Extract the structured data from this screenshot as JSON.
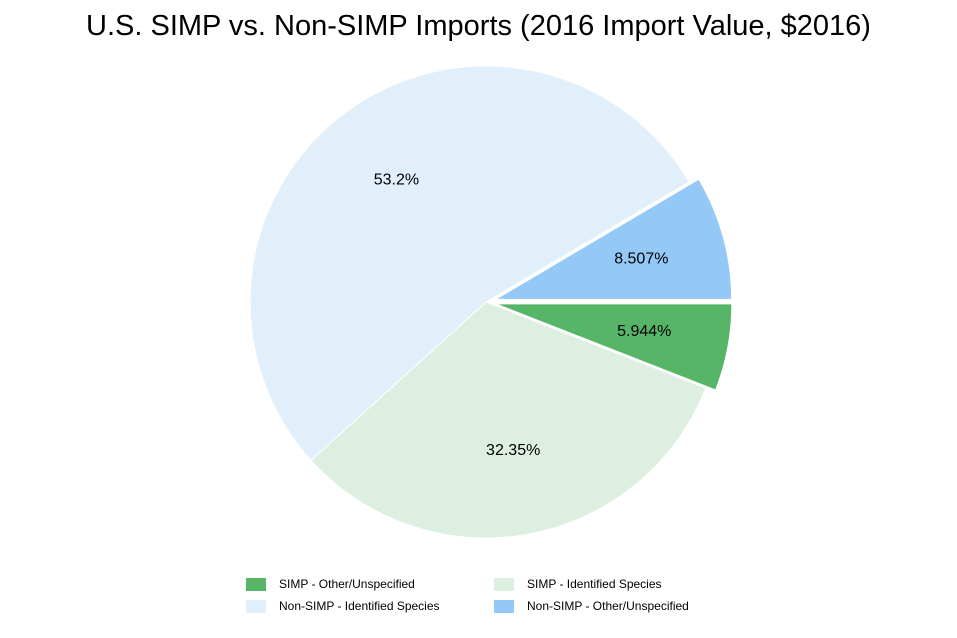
{
  "chart_data": {
    "type": "pie",
    "title": "U.S. SIMP vs. Non-SIMP Imports (2016 Import Value, $2016)",
    "slices": [
      {
        "name": "SIMP - Other/Unspecified",
        "value": 5.944,
        "label": "5.944%",
        "color": "#57b568",
        "exploded": true
      },
      {
        "name": "SIMP - Identified Species",
        "value": 32.35,
        "label": "32.35%",
        "color": "#dcefe0",
        "exploded": false
      },
      {
        "name": "Non-SIMP - Identified Species",
        "value": 53.2,
        "label": "53.2%",
        "color": "#e1effb",
        "exploded": false
      },
      {
        "name": "Non-SIMP - Other/Unspecified",
        "value": 8.507,
        "label": "8.507%",
        "color": "#94c8f6",
        "exploded": true
      }
    ],
    "legend_placement": "bottom",
    "legend": [
      {
        "label": "SIMP - Other/Unspecified",
        "color": "#57b568"
      },
      {
        "label": "SIMP - Identified Species",
        "color": "#dcefe0"
      },
      {
        "label": "Non-SIMP - Identified Species",
        "color": "#e1effb"
      },
      {
        "label": "Non-SIMP - Other/Unspecified",
        "color": "#94c8f6"
      }
    ]
  }
}
